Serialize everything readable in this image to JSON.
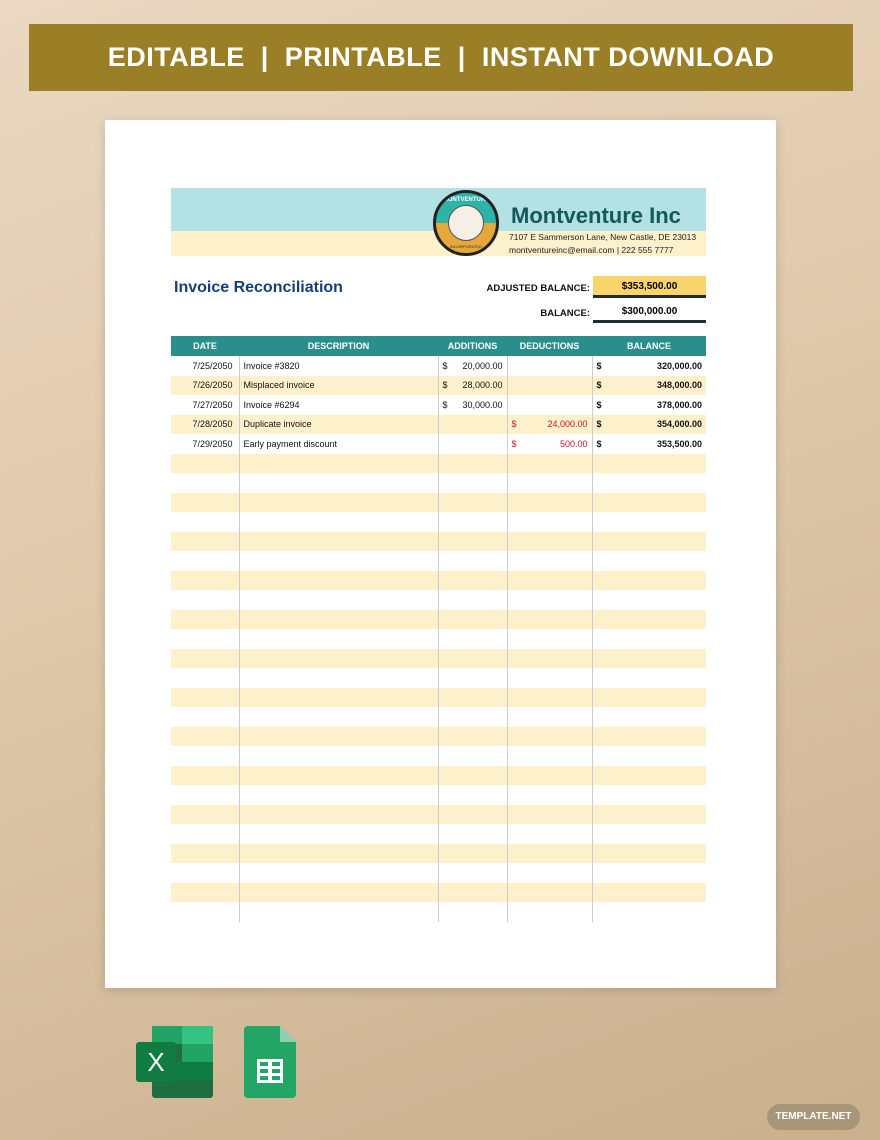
{
  "banner": "EDITABLE  |  PRINTABLE  |  INSTANT DOWNLOAD",
  "company": {
    "name": "Montventure Inc",
    "address": "7107 E Sammerson Lane, New Castle, DE 23013",
    "contact": "montventureinc@email.com | 222 555 7777",
    "logo_text": "MONTVENTURE",
    "logo_sub": "INCORPORATED"
  },
  "title": "Invoice Reconciliation",
  "summary": {
    "adjusted_label": "ADJUSTED BALANCE:",
    "adjusted_value": "$353,500.00",
    "balance_label": "BALANCE:",
    "balance_value": "$300,000.00"
  },
  "table": {
    "headers": [
      "DATE",
      "DESCRIPTION",
      "ADDITIONS",
      "DEDUCTIONS",
      "BALANCE"
    ],
    "rows": [
      {
        "date": "7/25/2050",
        "desc": "Invoice #3820",
        "add": "20,000.00",
        "ded": "",
        "bal": "320,000.00"
      },
      {
        "date": "7/26/2050",
        "desc": "Misplaced invoice",
        "add": "28,000.00",
        "ded": "",
        "bal": "348,000.00"
      },
      {
        "date": "7/27/2050",
        "desc": "Invoice #6294",
        "add": "30,000.00",
        "ded": "",
        "bal": "378,000.00"
      },
      {
        "date": "7/28/2050",
        "desc": "Duplicate invoice",
        "add": "",
        "ded": "24,000.00",
        "bal": "354,000.00"
      },
      {
        "date": "7/29/2050",
        "desc": "Early payment discount",
        "add": "",
        "ded": "500.00",
        "bal": "353,500.00"
      }
    ],
    "currency": "$"
  },
  "footer": {
    "brand": "TEMPLATE.NET",
    "icons": [
      "excel-icon",
      "google-sheets-icon"
    ]
  },
  "colors": {
    "header": "#2a8f8c",
    "stripe": "#fdf1cc",
    "highlight": "#f9d46a",
    "banner": "#9a7f26",
    "negative": "#c8102e"
  }
}
